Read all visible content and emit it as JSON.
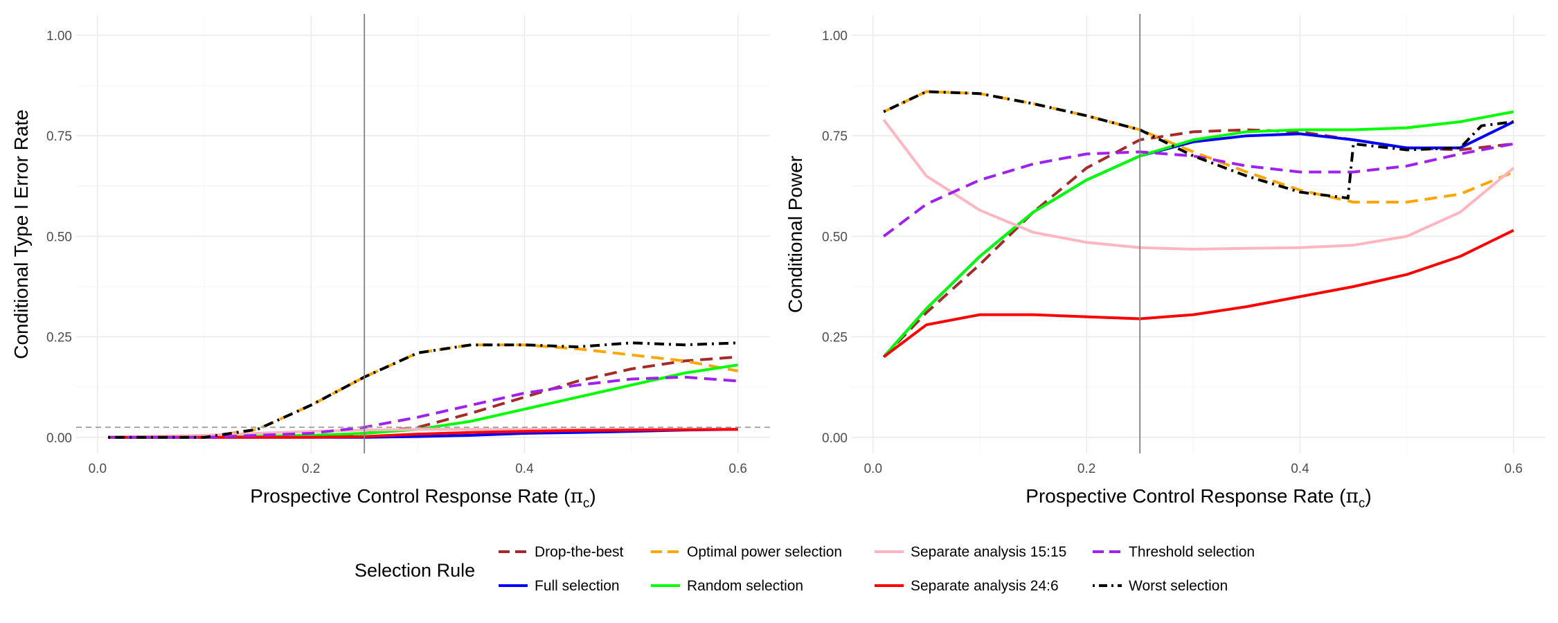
{
  "chart_data": [
    {
      "type": "line",
      "panel": "left",
      "xlabel": "Prospective Control Response Rate (",
      "xlabel_symbol": "π",
      "xlabel_subscript": "c",
      "xlabel_close": ")",
      "ylabel": "Conditional Type I Error Rate",
      "xlim": [
        -0.02,
        0.63
      ],
      "ylim": [
        -0.04,
        1.05
      ],
      "x_ticks": [
        0.0,
        0.2,
        0.4,
        0.6
      ],
      "x_tick_labels": [
        "0.0",
        "0.2",
        "0.4",
        "0.6"
      ],
      "y_ticks": [
        0.0,
        0.25,
        0.5,
        0.75,
        1.0
      ],
      "y_tick_labels": [
        "0.00",
        "0.25",
        "0.50",
        "0.75",
        "1.00"
      ],
      "vline_x": 0.25,
      "hline_y": 0.025,
      "grid": true,
      "series": [
        {
          "name": "Drop-the-best",
          "x": [
            0.01,
            0.1,
            0.2,
            0.25,
            0.3,
            0.35,
            0.4,
            0.45,
            0.5,
            0.55,
            0.6
          ],
          "values": [
            0.0,
            0.0,
            0.002,
            0.01,
            0.025,
            0.06,
            0.1,
            0.14,
            0.17,
            0.19,
            0.2
          ]
        },
        {
          "name": "Full selection",
          "x": [
            0.01,
            0.1,
            0.2,
            0.25,
            0.3,
            0.35,
            0.4,
            0.45,
            0.5,
            0.55,
            0.6
          ],
          "values": [
            0.0,
            0.0,
            0.0,
            0.0,
            0.002,
            0.005,
            0.01,
            0.012,
            0.015,
            0.018,
            0.02
          ]
        },
        {
          "name": "Optimal power selection",
          "x": [
            0.01,
            0.1,
            0.15,
            0.2,
            0.25,
            0.3,
            0.35,
            0.4,
            0.45,
            0.5,
            0.55,
            0.6
          ],
          "values": [
            0.0,
            0.0,
            0.02,
            0.08,
            0.15,
            0.21,
            0.23,
            0.23,
            0.22,
            0.205,
            0.19,
            0.165
          ]
        },
        {
          "name": "Random selection",
          "x": [
            0.01,
            0.1,
            0.2,
            0.25,
            0.3,
            0.35,
            0.4,
            0.45,
            0.5,
            0.55,
            0.6
          ],
          "values": [
            0.0,
            0.0,
            0.005,
            0.01,
            0.02,
            0.04,
            0.07,
            0.1,
            0.13,
            0.16,
            0.18
          ]
        },
        {
          "name": "Separate analysis 15:15",
          "x": [
            0.01,
            0.1,
            0.2,
            0.25,
            0.3,
            0.35,
            0.4,
            0.45,
            0.5,
            0.55,
            0.6
          ],
          "values": [
            0.0,
            0.005,
            0.015,
            0.018,
            0.02,
            0.02,
            0.02,
            0.02,
            0.02,
            0.02,
            0.02
          ]
        },
        {
          "name": "Separate analysis 24:6",
          "x": [
            0.01,
            0.1,
            0.2,
            0.25,
            0.3,
            0.35,
            0.4,
            0.45,
            0.5,
            0.55,
            0.6
          ],
          "values": [
            0.0,
            0.0,
            0.0,
            0.002,
            0.008,
            0.012,
            0.015,
            0.017,
            0.018,
            0.019,
            0.02
          ]
        },
        {
          "name": "Threshold selection",
          "x": [
            0.01,
            0.1,
            0.2,
            0.25,
            0.3,
            0.35,
            0.4,
            0.45,
            0.5,
            0.55,
            0.6
          ],
          "values": [
            0.0,
            0.0,
            0.01,
            0.025,
            0.05,
            0.08,
            0.11,
            0.13,
            0.145,
            0.15,
            0.14
          ]
        },
        {
          "name": "Worst selection",
          "x": [
            0.01,
            0.1,
            0.15,
            0.2,
            0.25,
            0.3,
            0.35,
            0.4,
            0.45,
            0.5,
            0.55,
            0.6
          ],
          "values": [
            0.0,
            0.0,
            0.02,
            0.08,
            0.15,
            0.21,
            0.23,
            0.23,
            0.225,
            0.235,
            0.23,
            0.235
          ]
        }
      ]
    },
    {
      "type": "line",
      "panel": "right",
      "xlabel": "Prospective Control Response Rate (",
      "xlabel_symbol": "π",
      "xlabel_subscript": "c",
      "xlabel_close": ")",
      "ylabel": "Conditional Power",
      "xlim": [
        -0.02,
        0.63
      ],
      "ylim": [
        -0.04,
        1.05
      ],
      "x_ticks": [
        0.0,
        0.2,
        0.4,
        0.6
      ],
      "x_tick_labels": [
        "0.0",
        "0.2",
        "0.4",
        "0.6"
      ],
      "y_ticks": [
        0.0,
        0.25,
        0.5,
        0.75,
        1.0
      ],
      "y_tick_labels": [
        "0.00",
        "0.25",
        "0.50",
        "0.75",
        "1.00"
      ],
      "vline_x": 0.25,
      "grid": true,
      "series": [
        {
          "name": "Drop-the-best",
          "x": [
            0.01,
            0.05,
            0.1,
            0.15,
            0.2,
            0.25,
            0.3,
            0.35,
            0.4,
            0.45,
            0.5,
            0.55,
            0.6
          ],
          "values": [
            0.2,
            0.31,
            0.43,
            0.56,
            0.67,
            0.74,
            0.76,
            0.765,
            0.76,
            0.74,
            0.72,
            0.715,
            0.73
          ]
        },
        {
          "name": "Full selection",
          "x": [
            0.01,
            0.05,
            0.1,
            0.15,
            0.2,
            0.25,
            0.3,
            0.35,
            0.4,
            0.45,
            0.5,
            0.55,
            0.6
          ],
          "values": [
            0.2,
            0.32,
            0.45,
            0.56,
            0.64,
            0.7,
            0.735,
            0.75,
            0.755,
            0.74,
            0.72,
            0.72,
            0.785
          ]
        },
        {
          "name": "Optimal power selection",
          "x": [
            0.01,
            0.05,
            0.1,
            0.15,
            0.2,
            0.25,
            0.3,
            0.35,
            0.4,
            0.45,
            0.5,
            0.55,
            0.6
          ],
          "values": [
            0.81,
            0.86,
            0.855,
            0.83,
            0.8,
            0.765,
            0.71,
            0.66,
            0.615,
            0.585,
            0.585,
            0.605,
            0.66
          ]
        },
        {
          "name": "Random selection",
          "x": [
            0.01,
            0.05,
            0.1,
            0.15,
            0.2,
            0.25,
            0.3,
            0.35,
            0.4,
            0.45,
            0.5,
            0.55,
            0.6
          ],
          "values": [
            0.2,
            0.32,
            0.45,
            0.56,
            0.64,
            0.7,
            0.74,
            0.76,
            0.765,
            0.765,
            0.77,
            0.785,
            0.81
          ]
        },
        {
          "name": "Separate analysis 15:15",
          "x": [
            0.01,
            0.05,
            0.1,
            0.15,
            0.2,
            0.25,
            0.3,
            0.35,
            0.4,
            0.45,
            0.5,
            0.55,
            0.6
          ],
          "values": [
            0.79,
            0.65,
            0.565,
            0.51,
            0.485,
            0.472,
            0.468,
            0.47,
            0.472,
            0.478,
            0.5,
            0.56,
            0.67
          ]
        },
        {
          "name": "Separate analysis 24:6",
          "x": [
            0.01,
            0.05,
            0.1,
            0.15,
            0.2,
            0.25,
            0.3,
            0.35,
            0.4,
            0.45,
            0.5,
            0.55,
            0.6
          ],
          "values": [
            0.2,
            0.28,
            0.305,
            0.305,
            0.3,
            0.295,
            0.305,
            0.325,
            0.35,
            0.375,
            0.405,
            0.45,
            0.515
          ]
        },
        {
          "name": "Threshold selection",
          "x": [
            0.01,
            0.05,
            0.1,
            0.15,
            0.2,
            0.25,
            0.3,
            0.35,
            0.4,
            0.45,
            0.5,
            0.55,
            0.6
          ],
          "values": [
            0.5,
            0.58,
            0.64,
            0.68,
            0.705,
            0.71,
            0.7,
            0.675,
            0.66,
            0.66,
            0.675,
            0.705,
            0.73
          ]
        },
        {
          "name": "Worst selection",
          "x": [
            0.01,
            0.05,
            0.1,
            0.15,
            0.2,
            0.25,
            0.3,
            0.35,
            0.4,
            0.445,
            0.45,
            0.5,
            0.55,
            0.57,
            0.6
          ],
          "values": [
            0.81,
            0.86,
            0.855,
            0.83,
            0.8,
            0.765,
            0.7,
            0.65,
            0.61,
            0.595,
            0.73,
            0.715,
            0.72,
            0.775,
            0.785
          ]
        }
      ]
    }
  ],
  "legend": {
    "title": "Selection Rule",
    "entries": [
      {
        "label": "Drop-the-best",
        "color": "#A52A2A",
        "dash": "longdash"
      },
      {
        "label": "Optimal power selection",
        "color": "#FFA500",
        "dash": "longdash"
      },
      {
        "label": "Separate analysis 15:15",
        "color": "#FFB6C1",
        "dash": "solid"
      },
      {
        "label": "Threshold selection",
        "color": "#A020F0",
        "dash": "longdash"
      },
      {
        "label": "Full selection",
        "color": "#0000FF",
        "dash": "solid"
      },
      {
        "label": "Random selection",
        "color": "#00FF00",
        "dash": "solid"
      },
      {
        "label": "Separate analysis 24:6",
        "color": "#FF0000",
        "dash": "solid"
      },
      {
        "label": "Worst selection",
        "color": "#000000",
        "dash": "dotdash"
      }
    ]
  }
}
